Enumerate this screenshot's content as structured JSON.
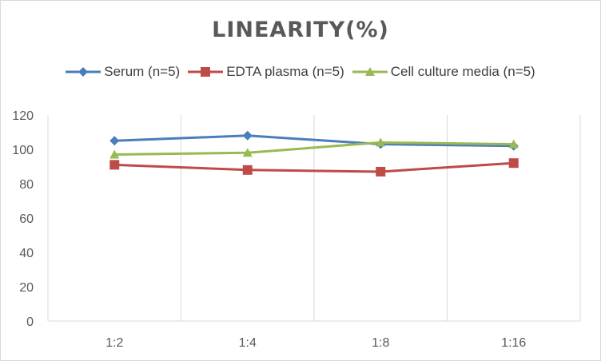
{
  "chart_data": {
    "type": "line",
    "title": "LINEARITY(%)",
    "xlabel": "",
    "ylabel": "",
    "categories": [
      "1:2",
      "1:4",
      "1:8",
      "1:16"
    ],
    "ylim": [
      0,
      120
    ],
    "yticks": [
      0,
      20,
      40,
      60,
      80,
      100,
      120
    ],
    "grid": "vertical",
    "legend_position": "top",
    "series": [
      {
        "name": "Serum (n=5)",
        "values": [
          105,
          108,
          103,
          102
        ],
        "color": "#4a7ebb",
        "marker": "diamond"
      },
      {
        "name": "EDTA plasma (n=5)",
        "values": [
          91,
          88,
          87,
          92
        ],
        "color": "#be4b48",
        "marker": "square"
      },
      {
        "name": "Cell culture media (n=5)",
        "values": [
          97,
          98,
          104,
          103
        ],
        "color": "#98b954",
        "marker": "triangle"
      }
    ]
  }
}
